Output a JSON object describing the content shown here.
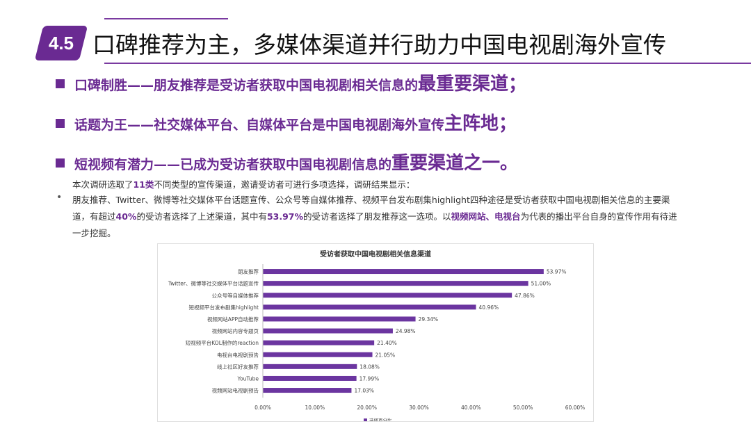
{
  "badge": "4.5",
  "title": "口碑推荐为主，多媒体渠道并行助力中国电视剧海外宣传",
  "points": [
    {
      "lead": "口碑制胜——朋友推荐是受访者获取中国电视剧相关信息的",
      "em": "最重要渠道；"
    },
    {
      "lead": "话题为王——社交媒体平台、自媒体平台是中国电视剧海外宣传",
      "em": "主阵地；"
    },
    {
      "lead": "短视频有潜力——已成为受访者获取中国电视剧信息的",
      "em": "重要渠道之一。"
    }
  ],
  "intro": {
    "pre": "本次调研选取了",
    "hl": "11类",
    "post": "不同类型的宣传渠道，邀请受访者可进行多项选择，调研结果显示："
  },
  "bullet": "•",
  "line1": "朋友推荐、Twitter、微博等社交媒体平台话题宣传、公众号等自媒体推荐、视频平台发布剧集highlight四种途径是受访者获取中国电视剧相关信息的主要渠",
  "line2": {
    "a": "道，有超过",
    "b": "40%",
    "c": "的受访者选择了上述渠道，其中有",
    "d": "53.97%",
    "e": "的受访者选择了朋友推荐这一选项。以",
    "f": "视频网站、电视台",
    "g": "为代表的播出平台自身的宣传作用有待进"
  },
  "line3": "一步挖掘。",
  "colors": {
    "accent": "#6a2a92",
    "bar": "#6b35a0"
  },
  "chart_data": {
    "type": "bar",
    "orientation": "horizontal",
    "title": "受访者获取中国电视剧相关信息渠道",
    "categories": [
      "朋友推荐",
      "Twitter、微博等社交媒体平台话题宣传",
      "公众号等自媒体推荐",
      "短视频平台发布剧集highlight",
      "视频网站APP自动推荐",
      "视频网站内容专题页",
      "短视频平台KOL制作的reaction",
      "电视台电视剧预告",
      "线上社区好友推荐",
      "YouTube",
      "视频网站电视剧预告"
    ],
    "series": [
      {
        "name": "选择百分比",
        "values": [
          53.97,
          51.0,
          47.86,
          40.96,
          29.34,
          24.98,
          21.4,
          21.05,
          18.08,
          17.99,
          17.03
        ]
      }
    ],
    "value_labels": [
      "53.97%",
      "51.00%",
      "47.86%",
      "40.96%",
      "29.34%",
      "24.98%",
      "21.40%",
      "21.05%",
      "18.08%",
      "17.99%",
      "17.03%"
    ],
    "xlim": [
      0,
      60
    ],
    "xticks": [
      0,
      10,
      20,
      30,
      40,
      50,
      60
    ],
    "xtick_labels": [
      "0.00%",
      "10.00%",
      "20.00%",
      "30.00%",
      "40.00%",
      "50.00%",
      "60.00%"
    ],
    "legend": "bottom-center",
    "grid": false
  }
}
